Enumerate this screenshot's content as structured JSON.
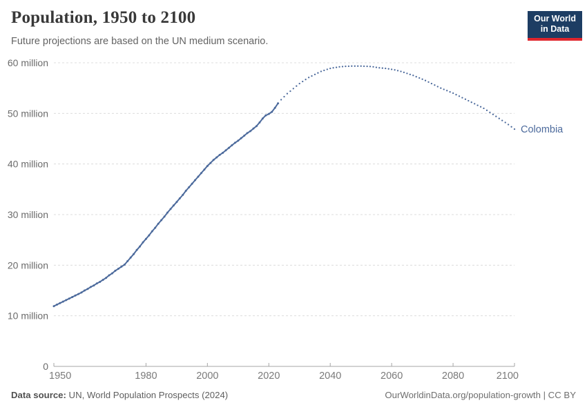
{
  "header": {
    "title": "Population, 1950 to 2100",
    "subtitle": "Future projections are based on the UN medium scenario.",
    "logo": {
      "line1": "Our World",
      "line2": "in Data"
    }
  },
  "footer": {
    "source_label": "Data source:",
    "source_text": " UN, World Population Prospects (2024)",
    "right_text": "OurWorldinData.org/population-growth | CC BY"
  },
  "colors": {
    "series_blue": "#4C6A9C",
    "logo_navy": "#1d3d63",
    "logo_red": "#e0262d",
    "gridline": "#dcdcdc",
    "axis": "#a5a5a5",
    "tick_text": "#6b6b6b"
  },
  "chart_data": {
    "type": "line",
    "title": "Population, 1950 to 2100",
    "subtitle": "Future projections are based on the UN medium scenario.",
    "entity_label": "Colombia",
    "entity_color": "#4C6A9C",
    "unit": "people (millions)",
    "xlabel": "",
    "ylabel": "",
    "xlim": [
      1950,
      2100
    ],
    "ylim": [
      0,
      60
    ],
    "grid": "dashed horizontal",
    "legend_position": "end-of-line label",
    "x_ticks": [
      1950,
      1980,
      2000,
      2020,
      2040,
      2060,
      2080,
      2100
    ],
    "y_ticks": [
      {
        "value": 0,
        "label": "0"
      },
      {
        "value": 10,
        "label": "10 million"
      },
      {
        "value": 20,
        "label": "20 million"
      },
      {
        "value": 30,
        "label": "30 million"
      },
      {
        "value": 40,
        "label": "40 million"
      },
      {
        "value": 50,
        "label": "50 million"
      },
      {
        "value": 60,
        "label": "60 million"
      }
    ],
    "series": [
      {
        "name": "Colombia — historical estimates",
        "style": "solid",
        "color": "#4C6A9C",
        "start_year": 1950,
        "values": [
          11.9,
          12.2,
          12.5,
          12.8,
          13.1,
          13.4,
          13.7,
          14.0,
          14.3,
          14.6,
          15.0,
          15.3,
          15.7,
          16.0,
          16.4,
          16.7,
          17.1,
          17.5,
          18.0,
          18.4,
          18.9,
          19.3,
          19.7,
          20.1,
          20.8,
          21.5,
          22.2,
          23.0,
          23.7,
          24.5,
          25.2,
          25.9,
          26.7,
          27.4,
          28.2,
          28.9,
          29.6,
          30.4,
          31.1,
          31.8,
          32.5,
          33.2,
          33.9,
          34.7,
          35.4,
          36.1,
          36.8,
          37.5,
          38.2,
          38.9,
          39.6,
          40.2,
          40.8,
          41.3,
          41.8,
          42.2,
          42.7,
          43.2,
          43.7,
          44.2,
          44.6,
          45.1,
          45.6,
          46.1,
          46.5,
          47.0,
          47.5,
          48.2,
          49.0,
          49.6,
          49.9,
          50.3,
          51.1,
          52.0
        ]
      },
      {
        "name": "Colombia — UN medium projection",
        "style": "dotted",
        "color": "#4C6A9C",
        "start_year": 2023,
        "values": [
          52.0,
          52.7,
          53.3,
          53.9,
          54.4,
          54.9,
          55.4,
          55.9,
          56.3,
          56.7,
          57.1,
          57.4,
          57.7,
          58.0,
          58.3,
          58.5,
          58.7,
          58.9,
          59.0,
          59.1,
          59.2,
          59.25,
          59.3,
          59.32,
          59.34,
          59.35,
          59.35,
          59.34,
          59.32,
          59.3,
          59.26,
          59.2,
          59.1,
          59.0,
          58.95,
          58.9,
          58.8,
          58.7,
          58.6,
          58.45,
          58.3,
          58.1,
          57.9,
          57.7,
          57.5,
          57.25,
          57.0,
          56.75,
          56.5,
          56.2,
          55.9,
          55.6,
          55.3,
          55.0,
          54.75,
          54.5,
          54.25,
          54.0,
          53.7,
          53.4,
          53.1,
          52.8,
          52.5,
          52.2,
          51.9,
          51.6,
          51.3,
          51.0,
          50.6,
          50.2,
          49.8,
          49.4,
          49.0,
          48.6,
          48.2,
          47.8,
          47.35,
          46.9
        ]
      }
    ]
  }
}
